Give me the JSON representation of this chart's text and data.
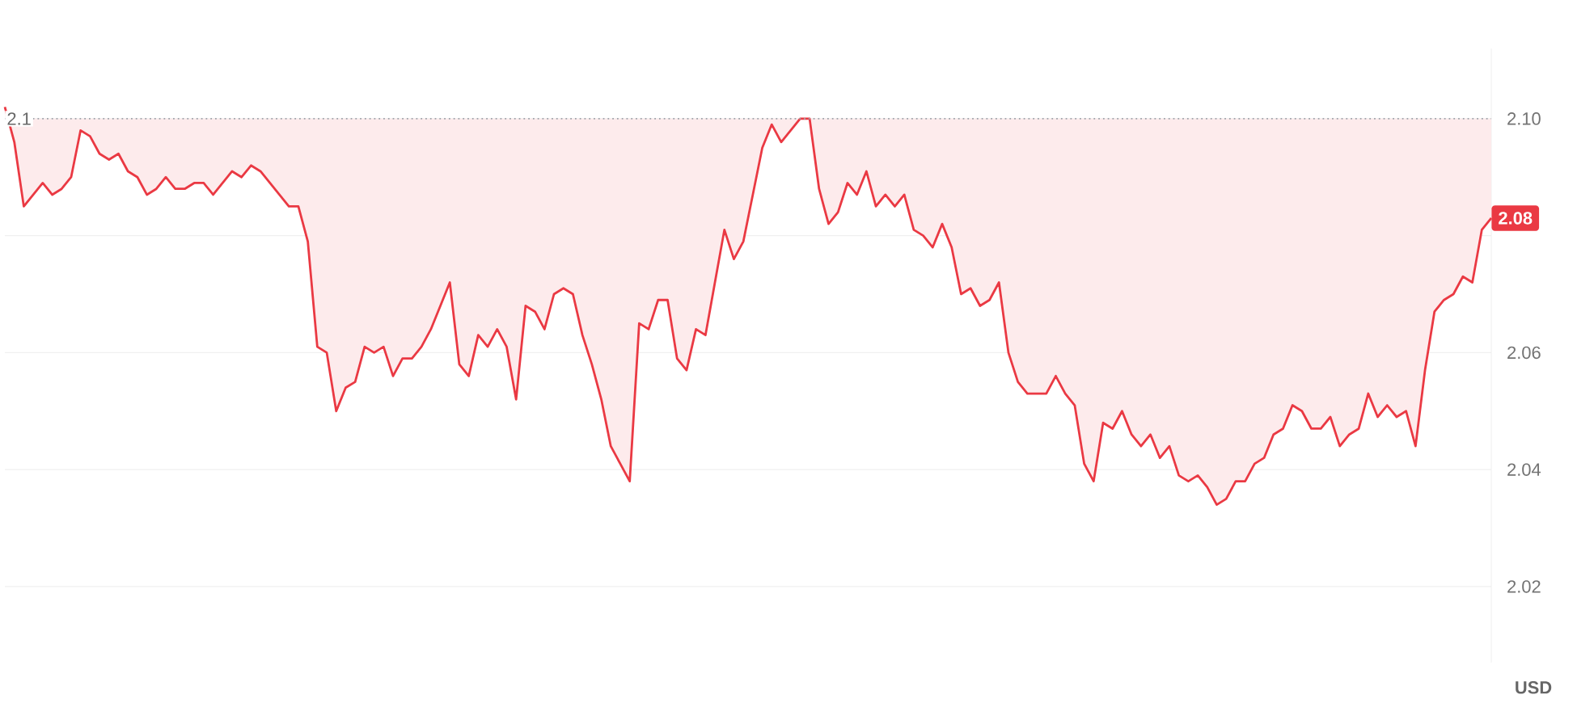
{
  "chart_data": {
    "type": "line",
    "ylabel": "USD",
    "categories": [
      null,
      null,
      null,
      null,
      null,
      null,
      null,
      null,
      null,
      null,
      null,
      null,
      null,
      null,
      null,
      null,
      null,
      null,
      null,
      null,
      null,
      null,
      null,
      null,
      null,
      null,
      null,
      null,
      null,
      null,
      null,
      null,
      null,
      null,
      null,
      null,
      null,
      null,
      null,
      null,
      null,
      null,
      null,
      null,
      null,
      null,
      null,
      null,
      null,
      null,
      null,
      null,
      null,
      null,
      null,
      null,
      null,
      null,
      null,
      null,
      null,
      null,
      null,
      null,
      null,
      null,
      null,
      null,
      null,
      null,
      null,
      null,
      null,
      null,
      null,
      null,
      null,
      null,
      null,
      null,
      null,
      null,
      null,
      null,
      null,
      null,
      null,
      null,
      null,
      null,
      null,
      null,
      null,
      null,
      null,
      null,
      null,
      null,
      null,
      null,
      null,
      null,
      null,
      null,
      null,
      null,
      null,
      null,
      null,
      null,
      null,
      null,
      null,
      null,
      null,
      null,
      null,
      null,
      null,
      null,
      null,
      null,
      null,
      null,
      null,
      null,
      null,
      null,
      null,
      null,
      null,
      null,
      null,
      null,
      null,
      null,
      null,
      null,
      null,
      null,
      null,
      null,
      null,
      null,
      null,
      null,
      null,
      null,
      null,
      null,
      null,
      null,
      null,
      null,
      null,
      null,
      null,
      null
    ],
    "series": [
      {
        "color": "#ea3943",
        "values": [
          2.102,
          2.096,
          2.085,
          2.087,
          2.089,
          2.087,
          2.088,
          2.09,
          2.098,
          2.097,
          2.094,
          2.093,
          2.094,
          2.091,
          2.09,
          2.087,
          2.088,
          2.09,
          2.088,
          2.088,
          2.089,
          2.089,
          2.087,
          2.089,
          2.091,
          2.09,
          2.092,
          2.091,
          2.089,
          2.087,
          2.085,
          2.085,
          2.079,
          2.061,
          2.06,
          2.05,
          2.054,
          2.055,
          2.061,
          2.06,
          2.061,
          2.056,
          2.059,
          2.059,
          2.061,
          2.064,
          2.068,
          2.072,
          2.058,
          2.056,
          2.063,
          2.061,
          2.064,
          2.061,
          2.052,
          2.068,
          2.067,
          2.064,
          2.07,
          2.071,
          2.07,
          2.063,
          2.058,
          2.052,
          2.044,
          2.041,
          2.038,
          2.065,
          2.064,
          2.069,
          2.069,
          2.059,
          2.057,
          2.064,
          2.063,
          2.072,
          2.081,
          2.076,
          2.079,
          2.087,
          2.095,
          2.099,
          2.096,
          2.098,
          2.1,
          2.1,
          2.088,
          2.082,
          2.084,
          2.089,
          2.087,
          2.091,
          2.085,
          2.087,
          2.085,
          2.087,
          2.081,
          2.08,
          2.078,
          2.082,
          2.078,
          2.07,
          2.071,
          2.068,
          2.069,
          2.072,
          2.06,
          2.055,
          2.053,
          2.053,
          2.053,
          2.056,
          2.053,
          2.051,
          2.041,
          2.038,
          2.048,
          2.047,
          2.05,
          2.046,
          2.044,
          2.046,
          2.042,
          2.044,
          2.039,
          2.038,
          2.039,
          2.037,
          2.034,
          2.035,
          2.038,
          2.038,
          2.041,
          2.042,
          2.046,
          2.047,
          2.051,
          2.05,
          2.047,
          2.047,
          2.049,
          2.044,
          2.046,
          2.047,
          2.053,
          2.049,
          2.051,
          2.049,
          2.05,
          2.044,
          2.057,
          2.067,
          2.069,
          2.07,
          2.073,
          2.072,
          2.081,
          2.083
        ]
      }
    ],
    "ylim": [
      2.007,
      2.112
    ],
    "yticks": [
      2.02,
      2.04,
      2.06,
      {
        "value": 2.08,
        "label": null
      },
      {
        "value": 2.1,
        "label": "2.10"
      }
    ],
    "grid": "y",
    "ref_lines": [
      {
        "axis": "y",
        "value": 2.1,
        "label": "2.1",
        "color": "#a0a4ab",
        "line_style": "dotted"
      }
    ],
    "annotations": [
      {
        "text": "2.08",
        "y": 2.083
      }
    ]
  }
}
